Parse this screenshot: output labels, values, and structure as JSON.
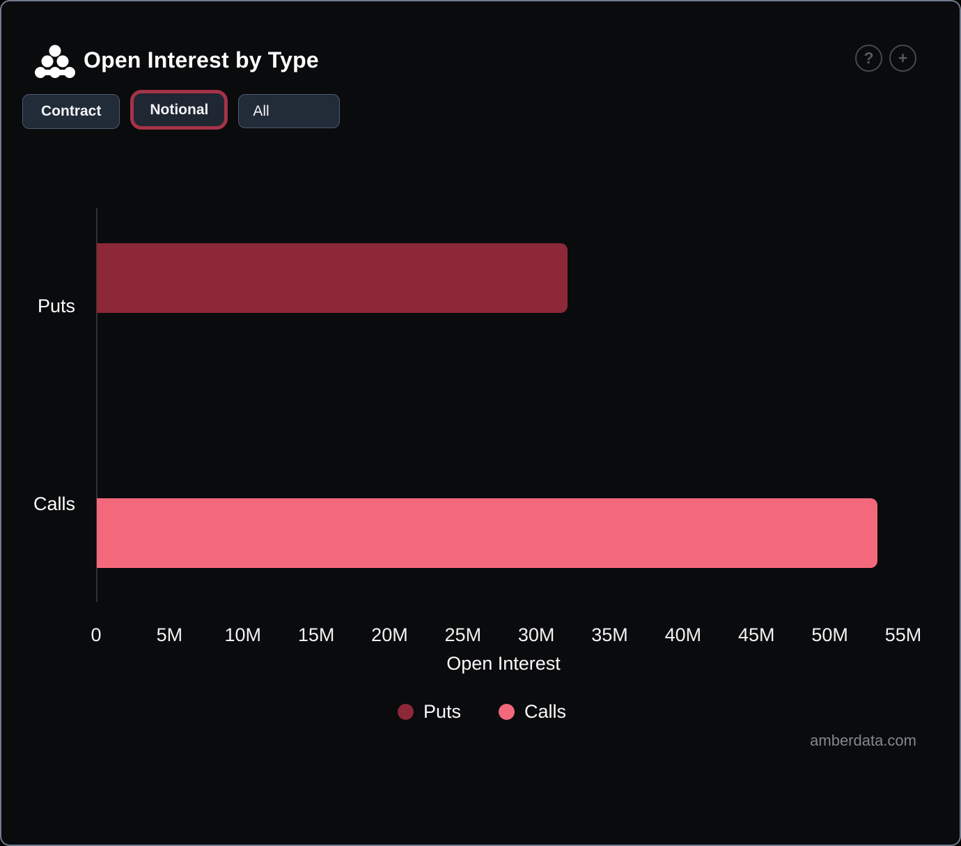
{
  "header": {
    "title": "Open Interest by Type",
    "help_label": "?",
    "add_label": "+"
  },
  "toolbar": {
    "contract_label": "Contract",
    "notional_label": "Notional",
    "all_label": "All",
    "selected": "Notional",
    "active_border_color": "#a53348"
  },
  "chart_data": {
    "type": "bar",
    "orientation": "horizontal",
    "title": "Open Interest by Type",
    "categories": [
      "Puts",
      "Calls"
    ],
    "values": [
      32100000,
      53200000
    ],
    "values_approx_label": [
      "32.1M",
      "53.2M"
    ],
    "bar_colors": [
      "#8d2838",
      "#f4687c"
    ],
    "xlabel": "Open Interest",
    "ylabel": "",
    "xlim": [
      0,
      55000000
    ],
    "x_ticks": [
      "0",
      "5M",
      "10M",
      "15M",
      "20M",
      "25M",
      "30M",
      "35M",
      "40M",
      "45M",
      "50M",
      "55M"
    ],
    "grid": false,
    "legend": {
      "position": "bottom",
      "entries": [
        {
          "label": "Puts",
          "color": "#8d2838"
        },
        {
          "label": "Calls",
          "color": "#f4687c"
        }
      ]
    }
  },
  "watermark": "amberdata.com"
}
